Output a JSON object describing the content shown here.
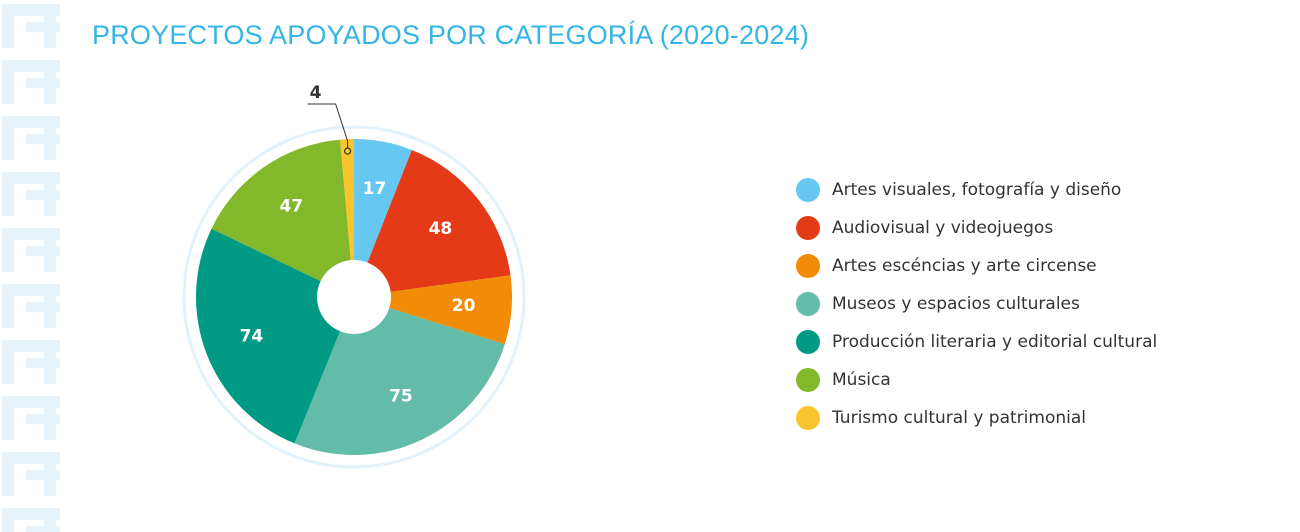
{
  "title": "PROYECTOS APOYADOS POR CATEGORÍA (2020-2024)",
  "colors": {
    "title": "#33b5e5",
    "side_pattern": "#e6f3fb",
    "outer_ring": "#e3f1fa"
  },
  "chart_data": {
    "type": "pie",
    "title": "PROYECTOS APOYADOS POR CATEGORÍA (2020-2024)",
    "legend_position": "right",
    "slices": [
      {
        "label": "Artes visuales, fotografía y diseño",
        "value": 17,
        "color": "#66c7f0"
      },
      {
        "label": "Audiovisual y videojuegos",
        "value": 48,
        "color": "#e53a17"
      },
      {
        "label": "Artes escéncias y arte circense",
        "value": 20,
        "color": "#f28c06"
      },
      {
        "label": "Museos y espacios culturales",
        "value": 75,
        "color": "#63bca8"
      },
      {
        "label": "Producción literaria y editorial cultural",
        "value": 74,
        "color": "#009a85"
      },
      {
        "label": "Música",
        "value": 47,
        "color": "#82b82a"
      },
      {
        "label": "Turismo cultural y patrimonial",
        "value": 4,
        "color": "#fbc42d"
      }
    ]
  }
}
